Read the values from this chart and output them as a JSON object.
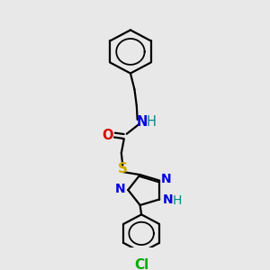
{
  "bg_color": "#e8e8e8",
  "bond_color": "#000000",
  "bond_width": 1.6,
  "atom_colors": {
    "N": "#0000dd",
    "H": "#008888",
    "O": "#dd0000",
    "S": "#ccaa00",
    "Cl": "#00aa00"
  }
}
